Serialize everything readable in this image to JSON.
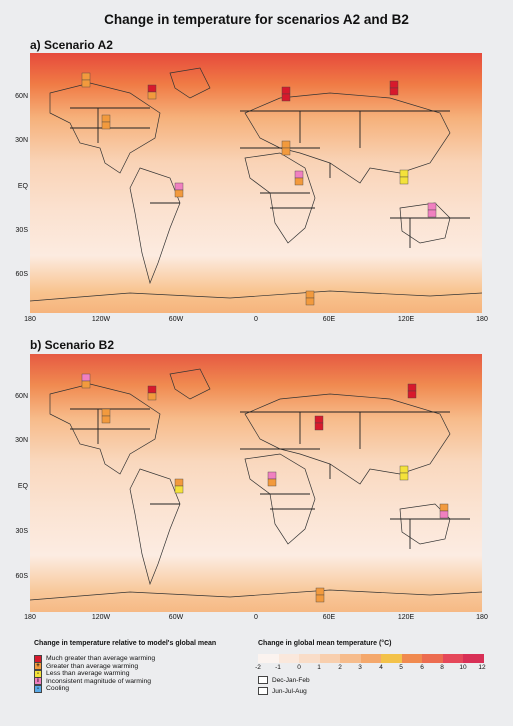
{
  "title": "Change in temperature for scenarios A2 and B2",
  "panels": [
    {
      "title": "a) Scenario A2"
    },
    {
      "title": "b) Scenario B2"
    }
  ],
  "lat_labels": [
    "60N",
    "30N",
    "EQ",
    "30S",
    "60S"
  ],
  "lon_labels": [
    "180",
    "120W",
    "60W",
    "0",
    "60E",
    "120E",
    "180"
  ],
  "legend_left": {
    "heading": "Change in temperature relative to model's global mean",
    "items": [
      {
        "label": "Much greater than average warming",
        "color": "#d7192c",
        "symbol": ""
      },
      {
        "label": "Greater than average warming",
        "color": "#f29a3d",
        "symbol": "+"
      },
      {
        "label": "Less than average warming",
        "color": "#f4e23a",
        "symbol": "-"
      },
      {
        "label": "Inconsistent magnitude of warming",
        "color": "#f080c0",
        "symbol": "i"
      },
      {
        "label": "Cooling",
        "color": "#5aa9e6",
        "symbol": "-"
      }
    ]
  },
  "legend_right": {
    "heading": "Change in global mean temperature (°C)",
    "ticks": [
      "-2",
      "-1",
      "0",
      "1",
      "2",
      "3",
      "4",
      "5",
      "6",
      "8",
      "10",
      "12"
    ],
    "colors": [
      "#fbf3ef",
      "#fae8dc",
      "#f9ddc8",
      "#f8cfae",
      "#f6bc8c",
      "#f4a86c",
      "#f3c24a",
      "#f08a4f",
      "#ec6c50",
      "#e5485a",
      "#d83056"
    ],
    "seasons": [
      "Dec-Jan-Feb",
      "Jun-Jul-Aug"
    ]
  }
}
